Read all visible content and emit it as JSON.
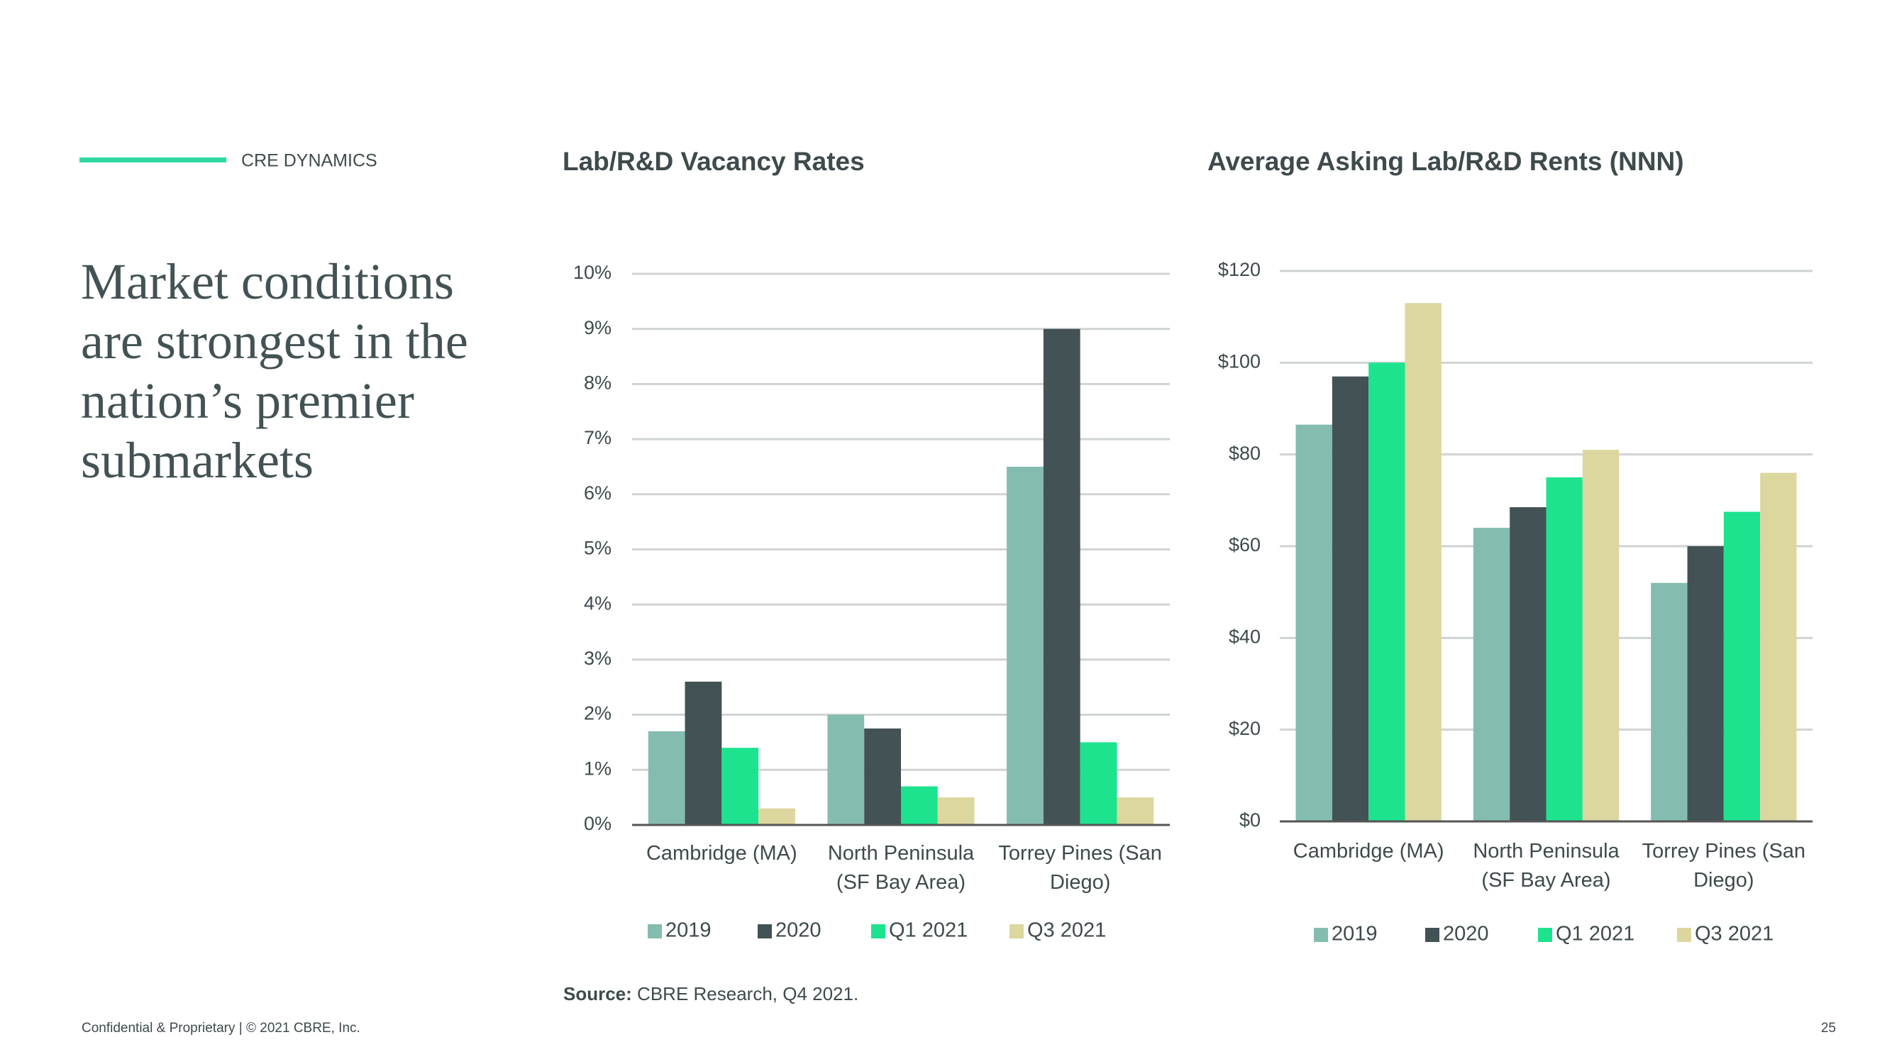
{
  "header": {
    "section": "CRE DYNAMICS"
  },
  "heading": {
    "lines": [
      "Market conditions",
      "are strongest in the",
      "nation’s premier",
      "submarkets"
    ]
  },
  "chart_data": [
    {
      "type": "bar",
      "title": "Lab/R&D Vacancy Rates",
      "categories": [
        "Cambridge (MA)",
        "North Peninsula (SF Bay Area)",
        "Torrey Pines (San Diego)"
      ],
      "series": [
        {
          "name": "2019",
          "color": "#85bcb0",
          "values": [
            1.7,
            2.0,
            6.5
          ]
        },
        {
          "name": "2020",
          "color": "#435254",
          "values": [
            2.6,
            1.75,
            9.0
          ]
        },
        {
          "name": "Q1 2021",
          "color": "#1de38f",
          "values": [
            1.4,
            0.7,
            1.5
          ]
        },
        {
          "name": "Q3 2021",
          "color": "#dbd79e",
          "values": [
            0.3,
            0.5,
            0.5
          ]
        }
      ],
      "ylim": [
        0,
        10
      ],
      "yticks": [
        {
          "value": 0,
          "label": "0%"
        },
        {
          "value": 1,
          "label": "1%"
        },
        {
          "value": 2,
          "label": "2%"
        },
        {
          "value": 3,
          "label": "3%"
        },
        {
          "value": 4,
          "label": "4%"
        },
        {
          "value": 5,
          "label": "5%"
        },
        {
          "value": 6,
          "label": "6%"
        },
        {
          "value": 7,
          "label": "7%"
        },
        {
          "value": 8,
          "label": "8%"
        },
        {
          "value": 9,
          "label": "9%"
        },
        {
          "value": 10,
          "label": "10%"
        }
      ],
      "grid": true,
      "legend": "bottom"
    },
    {
      "type": "bar",
      "title": "Average Asking Lab/R&D Rents (NNN)",
      "categories": [
        "Cambridge (MA)",
        "North Peninsula (SF Bay Area)",
        "Torrey Pines (San Diego)"
      ],
      "series": [
        {
          "name": "2019",
          "color": "#85bcb0",
          "values": [
            86.5,
            64,
            52
          ]
        },
        {
          "name": "2020",
          "color": "#435254",
          "values": [
            97,
            68.5,
            60
          ]
        },
        {
          "name": "Q1 2021",
          "color": "#1de38f",
          "values": [
            100,
            75,
            67.5
          ]
        },
        {
          "name": "Q3 2021",
          "color": "#dbd79e",
          "values": [
            113,
            81,
            76
          ]
        }
      ],
      "ylim": [
        0,
        120
      ],
      "yticks": [
        {
          "value": 0,
          "label": "$0"
        },
        {
          "value": 20,
          "label": "$20"
        },
        {
          "value": 40,
          "label": "$40"
        },
        {
          "value": 60,
          "label": "$60"
        },
        {
          "value": 80,
          "label": "$80"
        },
        {
          "value": 100,
          "label": "$100"
        },
        {
          "value": 120,
          "label": "$120"
        }
      ],
      "grid": true,
      "legend": "bottom"
    }
  ],
  "source": {
    "label": "Source:",
    "text": "CBRE Research, Q4 2021."
  },
  "footer": {
    "text": "Confidential & Proprietary | © 2021 CBRE, Inc.",
    "page": "25"
  }
}
